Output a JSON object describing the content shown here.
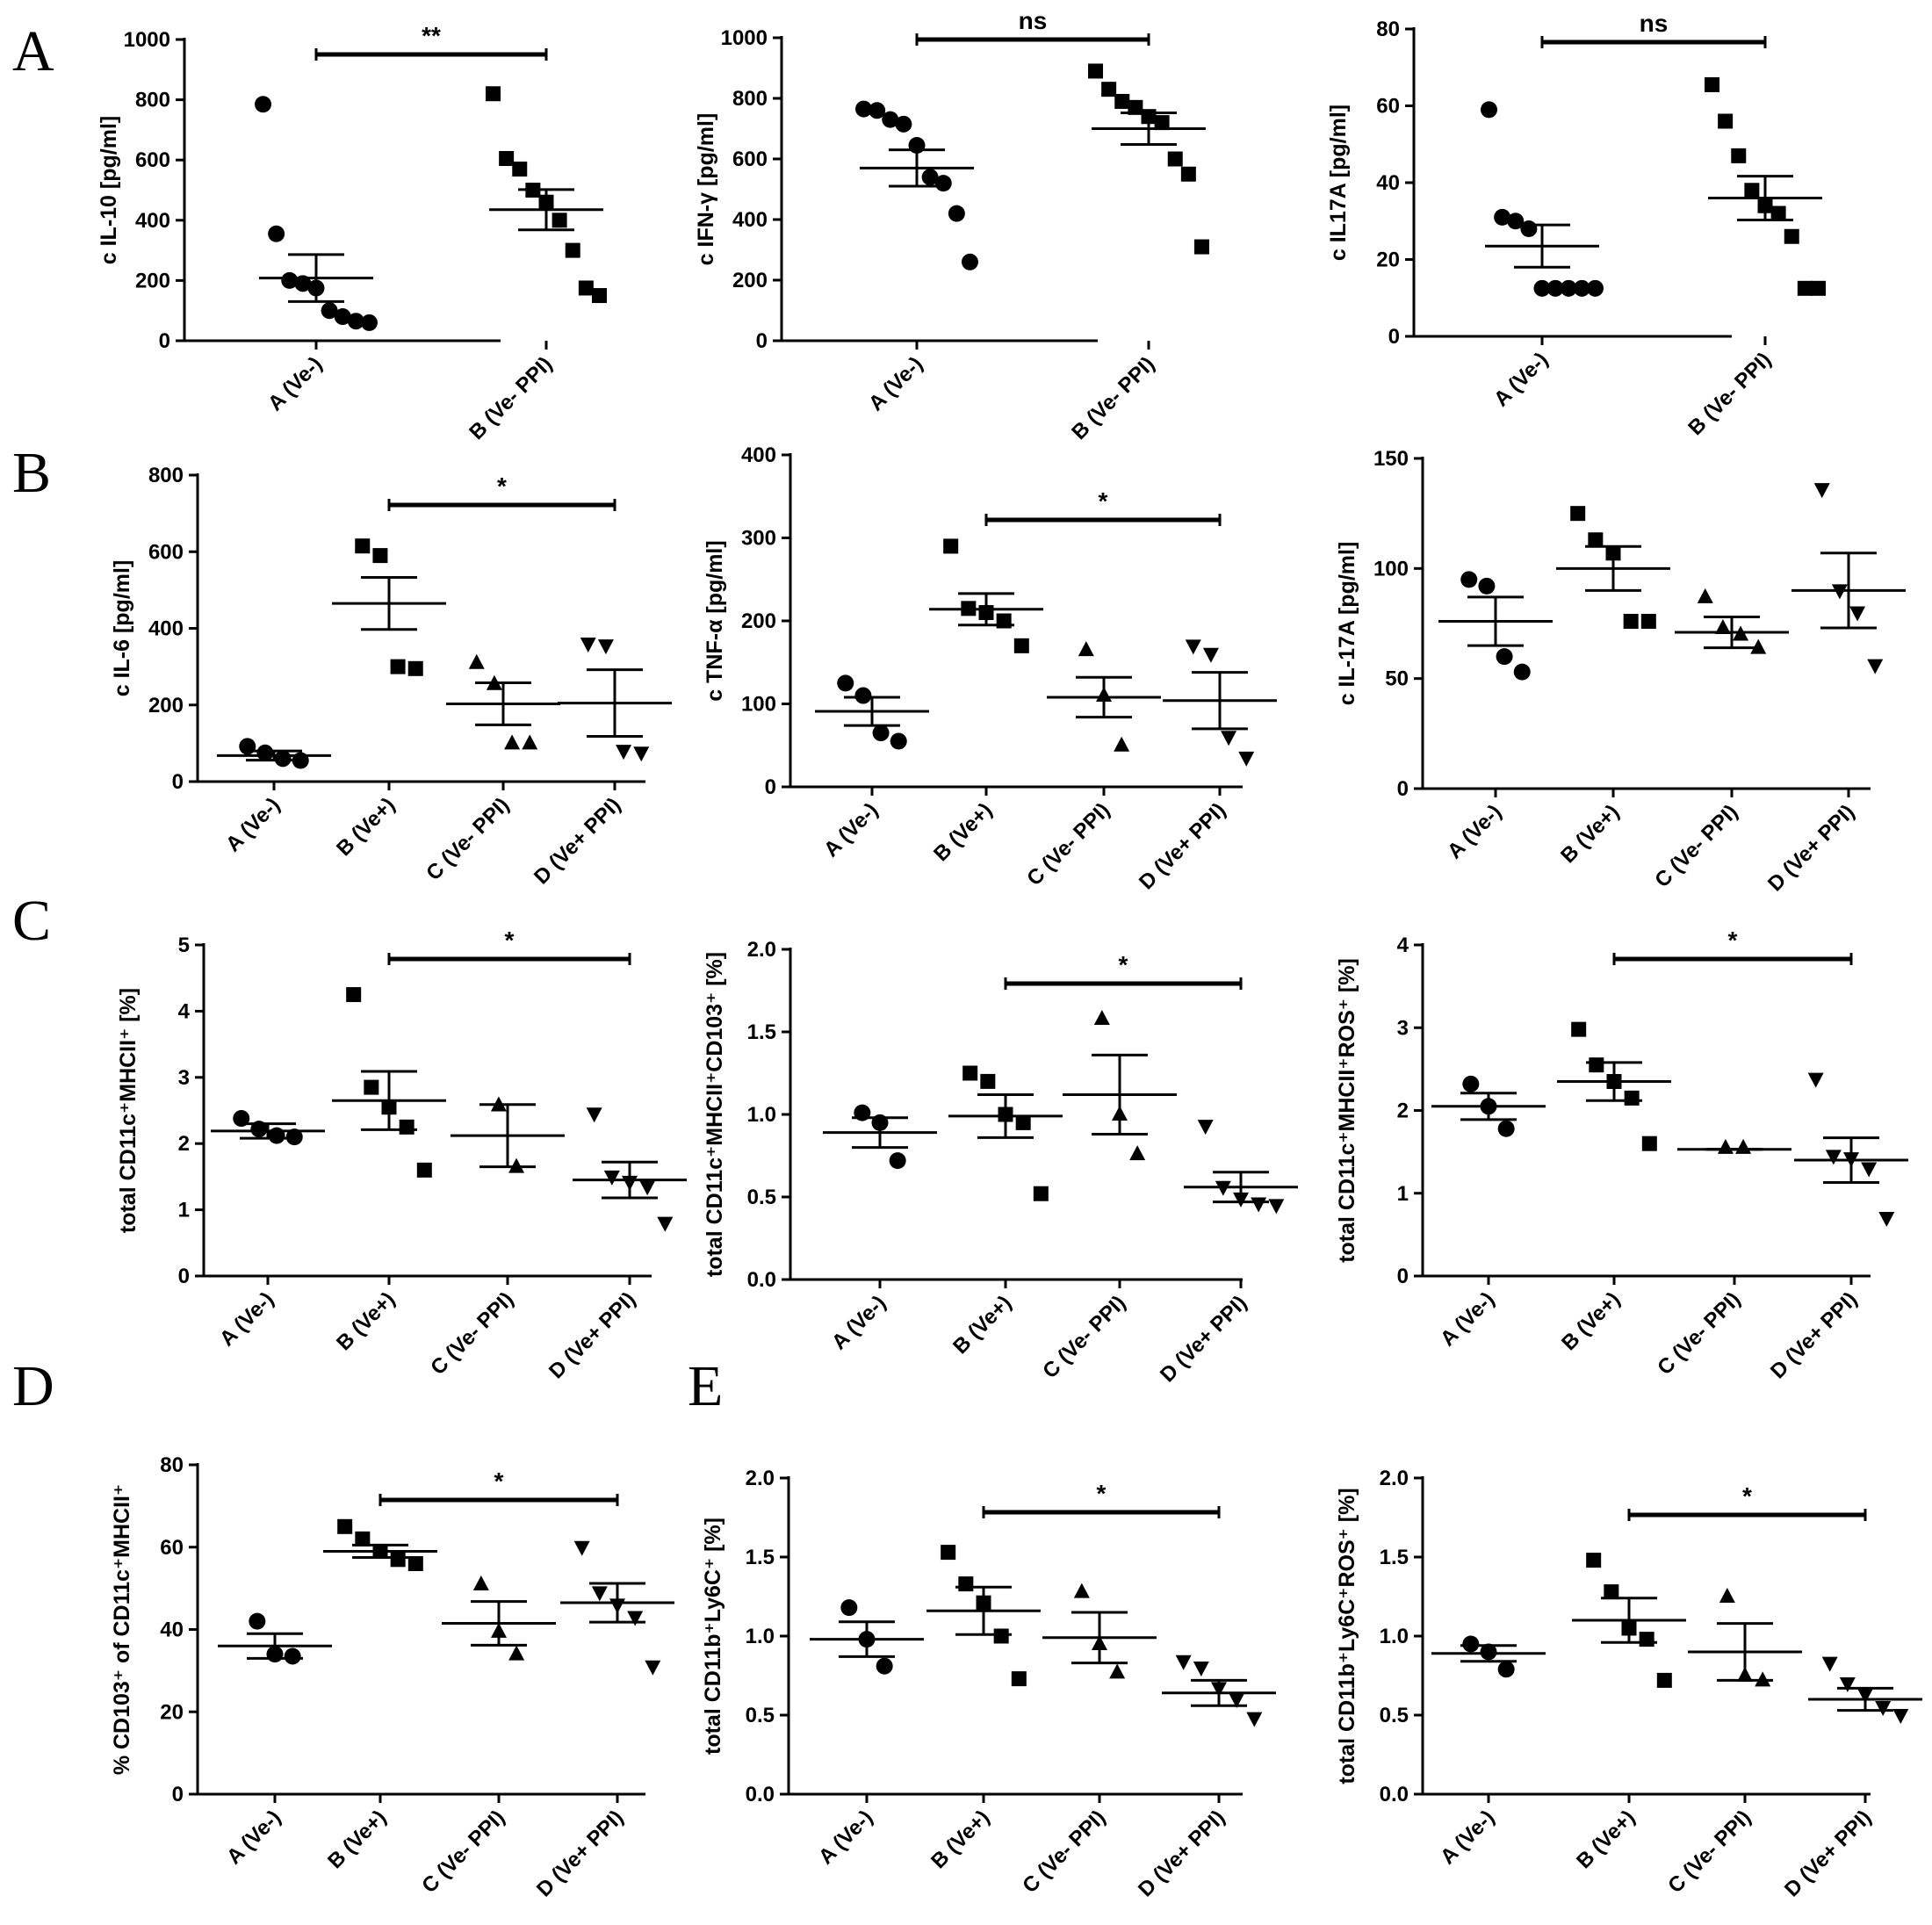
{
  "panel_letters": [
    "A",
    "B",
    "C",
    "D",
    "E"
  ],
  "chart_data": [
    {
      "type": "scatter",
      "panel": "A",
      "ylabel": "c IL-10 [pg/ml]",
      "ylim": [
        0,
        1000
      ],
      "yticks": [
        0,
        200,
        400,
        600,
        800,
        1000
      ],
      "grid": false,
      "categories": [
        "A (Ve-)",
        "B (Ve- PPI)"
      ],
      "series": [
        {
          "marker": "circle",
          "points": [
            785,
            355,
            200,
            190,
            175,
            100,
            80,
            65,
            60
          ],
          "mean": 208,
          "sem": 78
        },
        {
          "marker": "square",
          "points": [
            820,
            605,
            570,
            500,
            460,
            400,
            300,
            175,
            150
          ],
          "mean": 435,
          "sem": 67
        }
      ],
      "significance": [
        {
          "from": 0,
          "to": 1,
          "label": "**"
        }
      ]
    },
    {
      "type": "scatter",
      "panel": "A",
      "ylabel": "c IFN-γ [pg/ml]",
      "ylim": [
        0,
        1000
      ],
      "yticks": [
        0,
        200,
        400,
        600,
        800,
        1000
      ],
      "grid": false,
      "categories": [
        "A (Ve-)",
        "B (Ve- PPI)"
      ],
      "series": [
        {
          "marker": "circle",
          "points": [
            765,
            760,
            730,
            715,
            645,
            540,
            520,
            420,
            260
          ],
          "mean": 570,
          "sem": 60
        },
        {
          "marker": "square",
          "points": [
            890,
            830,
            790,
            770,
            740,
            720,
            600,
            550,
            310
          ],
          "mean": 700,
          "sem": 52
        }
      ],
      "significance": [
        {
          "from": 0,
          "to": 1,
          "label": "ns"
        }
      ]
    },
    {
      "type": "scatter",
      "panel": "A",
      "ylabel": "c IL17A [pg/ml]",
      "ylim": [
        0,
        80
      ],
      "yticks": [
        0,
        20,
        40,
        60,
        80
      ],
      "grid": false,
      "categories": [
        "A (Ve-)",
        "B (Ve- PPI)"
      ],
      "series": [
        {
          "marker": "circle",
          "points": [
            59,
            31,
            30,
            28,
            12.5,
            12.5,
            12.5,
            12.5,
            12.5
          ],
          "mean": 23.5,
          "sem": 5.5
        },
        {
          "marker": "square",
          "points": [
            65.5,
            56,
            47,
            38,
            34,
            32,
            26,
            12.5,
            12.5
          ],
          "mean": 36,
          "sem": 5.7
        }
      ],
      "significance": [
        {
          "from": 0,
          "to": 1,
          "label": "ns"
        }
      ]
    },
    {
      "type": "scatter",
      "panel": "B",
      "ylabel": "c IL-6 [pg/ml]",
      "ylim": [
        0,
        800
      ],
      "yticks": [
        0,
        200,
        400,
        600,
        800
      ],
      "grid": false,
      "categories": [
        "A (Ve-)",
        "B (Ve+)",
        "C (Ve- PPI)",
        "D (Ve+ PPI)"
      ],
      "series": [
        {
          "marker": "circle",
          "points": [
            92,
            75,
            60,
            55
          ],
          "mean": 68,
          "sem": 12
        },
        {
          "marker": "square",
          "points": [
            615,
            590,
            300,
            295
          ],
          "mean": 465,
          "sem": 68
        },
        {
          "marker": "triangle-up",
          "points": [
            310,
            255,
            100,
            100
          ],
          "mean": 203,
          "sem": 55
        },
        {
          "marker": "triangle-down",
          "points": [
            360,
            355,
            80,
            75
          ],
          "mean": 205,
          "sem": 87
        }
      ],
      "significance": [
        {
          "from": 1,
          "to": 3,
          "label": "*"
        }
      ]
    },
    {
      "type": "scatter",
      "panel": "B",
      "ylabel": "c TNF-α [pg/ml]",
      "ylim": [
        0,
        400
      ],
      "yticks": [
        0,
        100,
        200,
        300,
        400
      ],
      "grid": false,
      "categories": [
        "A (Ve-)",
        "B (Ve+)",
        "C (Ve- PPI)",
        "D (Ve+ PPI)"
      ],
      "series": [
        {
          "marker": "circle",
          "points": [
            125,
            110,
            65,
            55
          ],
          "mean": 91,
          "sem": 17
        },
        {
          "marker": "square",
          "points": [
            290,
            215,
            210,
            200,
            170
          ],
          "mean": 214,
          "sem": 19
        },
        {
          "marker": "triangle-up",
          "points": [
            165,
            110,
            50
          ],
          "mean": 108,
          "sem": 24
        },
        {
          "marker": "triangle-down",
          "points": [
            170,
            160,
            60,
            35
          ],
          "mean": 104,
          "sem": 34
        }
      ],
      "significance": [
        {
          "from": 1,
          "to": 3,
          "label": "*"
        }
      ]
    },
    {
      "type": "scatter",
      "panel": "B",
      "ylabel": "c IL-17A [pg/ml]",
      "ylim": [
        0,
        150
      ],
      "yticks": [
        0,
        50,
        100,
        150
      ],
      "grid": false,
      "categories": [
        "A (Ve-)",
        "B (Ve+)",
        "C (Ve- PPI)",
        "D (Ve+ PPI)"
      ],
      "series": [
        {
          "marker": "circle",
          "points": [
            95,
            92,
            60,
            53
          ],
          "mean": 76,
          "sem": 11
        },
        {
          "marker": "square",
          "points": [
            125,
            113,
            107,
            76,
            76
          ],
          "mean": 100,
          "sem": 10
        },
        {
          "marker": "triangle-up",
          "points": [
            87,
            73,
            70,
            64
          ],
          "mean": 71,
          "sem": 7
        },
        {
          "marker": "triangle-down",
          "points": [
            136,
            90,
            80,
            56
          ],
          "mean": 90,
          "sem": 17
        }
      ],
      "significance": []
    },
    {
      "type": "scatter",
      "panel": "C",
      "ylabel": "total CD11c⁺MHCII⁺ [%]",
      "ylim": [
        0,
        5
      ],
      "yticks": [
        0,
        1,
        2,
        3,
        4,
        5
      ],
      "grid": false,
      "categories": [
        "A (Ve-)",
        "B (Ve+)",
        "C (Ve- PPI)",
        "D (Ve+ PPI)"
      ],
      "series": [
        {
          "marker": "circle",
          "points": [
            2.38,
            2.22,
            2.12,
            2.1
          ],
          "mean": 2.19,
          "sem": 0.11
        },
        {
          "marker": "square",
          "points": [
            4.25,
            2.85,
            2.55,
            2.25,
            1.6
          ],
          "mean": 2.65,
          "sem": 0.44
        },
        {
          "marker": "triangle-up",
          "points": [
            2.58,
            1.65
          ],
          "mean": 2.12,
          "sem": 0.47
        },
        {
          "marker": "triangle-down",
          "points": [
            2.45,
            1.5,
            1.42,
            1.35,
            0.8
          ],
          "mean": 1.45,
          "sem": 0.27
        }
      ],
      "significance": [
        {
          "from": 1,
          "to": 3,
          "label": "*"
        }
      ]
    },
    {
      "type": "scatter",
      "panel": "C",
      "ylabel": "total CD11c⁺MHCII⁺CD103⁺ [%]",
      "ylim": [
        0,
        2
      ],
      "yticks": [
        "0.0",
        "0.5",
        "1.0",
        "1.5",
        "2.0"
      ],
      "grid": false,
      "categories": [
        "A (Ve-)",
        "B (Ve+)",
        "C (Ve- PPI)",
        "D (Ve+ PPI)"
      ],
      "series": [
        {
          "marker": "circle",
          "points": [
            1.01,
            0.95,
            0.72
          ],
          "mean": 0.89,
          "sem": 0.09
        },
        {
          "marker": "square",
          "points": [
            1.25,
            1.2,
            1.0,
            0.95,
            0.52
          ],
          "mean": 0.99,
          "sem": 0.13
        },
        {
          "marker": "triangle-up",
          "points": [
            1.58,
            1.0,
            0.76
          ],
          "mean": 1.12,
          "sem": 0.24
        },
        {
          "marker": "triangle-down",
          "points": [
            0.93,
            0.56,
            0.49,
            0.46,
            0.45
          ],
          "mean": 0.56,
          "sem": 0.09
        }
      ],
      "significance": [
        {
          "from": 1,
          "to": 3,
          "label": "*"
        }
      ]
    },
    {
      "type": "scatter",
      "panel": "C",
      "ylabel": "total CD11c⁺MHCII⁺ROS⁺ [%]",
      "ylim": [
        0,
        4
      ],
      "yticks": [
        0,
        1,
        2,
        3,
        4
      ],
      "grid": false,
      "categories": [
        "A (Ve-)",
        "B (Ve+)",
        "C (Ve- PPI)",
        "D (Ve+ PPI)"
      ],
      "series": [
        {
          "marker": "circle",
          "points": [
            2.32,
            2.05,
            1.78
          ],
          "mean": 2.05,
          "sem": 0.16
        },
        {
          "marker": "square",
          "points": [
            2.98,
            2.55,
            2.35,
            2.15,
            1.6
          ],
          "mean": 2.35,
          "sem": 0.23
        },
        {
          "marker": "triangle-up",
          "points": [
            1.55,
            1.55
          ],
          "mean": 1.53,
          "sem": 0.0
        },
        {
          "marker": "triangle-down",
          "points": [
            2.38,
            1.45,
            1.42,
            1.3,
            0.7
          ],
          "mean": 1.4,
          "sem": 0.27
        }
      ],
      "significance": [
        {
          "from": 1,
          "to": 3,
          "label": "*"
        }
      ]
    },
    {
      "type": "scatter",
      "panel": "D",
      "ylabel": "% CD103⁺ of CD11c⁺MHCII⁺",
      "ylim": [
        0,
        80
      ],
      "yticks": [
        0,
        20,
        40,
        60,
        80
      ],
      "grid": false,
      "categories": [
        "A (Ve-)",
        "B (Ve+)",
        "C (Ve- PPI)",
        "D (Ve+ PPI)"
      ],
      "series": [
        {
          "marker": "circle",
          "points": [
            42,
            34,
            33.5
          ],
          "mean": 36,
          "sem": 3
        },
        {
          "marker": "square",
          "points": [
            65,
            62,
            59,
            57,
            56
          ],
          "mean": 59,
          "sem": 1.5
        },
        {
          "marker": "triangle-up",
          "points": [
            51,
            39.5,
            34
          ],
          "mean": 41.5,
          "sem": 5.3
        },
        {
          "marker": "triangle-down",
          "points": [
            60,
            49,
            46,
            43,
            31
          ],
          "mean": 46.5,
          "sem": 4.7
        }
      ],
      "significance": [
        {
          "from": 1,
          "to": 3,
          "label": "*"
        }
      ]
    },
    {
      "type": "scatter",
      "panel": "E",
      "ylabel": "total CD11b⁺Ly6C⁺ [%]",
      "ylim": [
        0,
        2
      ],
      "yticks": [
        "0.0",
        "0.5",
        "1.0",
        "1.5",
        "2.0"
      ],
      "grid": false,
      "categories": [
        "A (Ve-)",
        "B (Ve+)",
        "C (Ve- PPI)",
        "D (Ve+ PPI)"
      ],
      "series": [
        {
          "marker": "circle",
          "points": [
            1.18,
            0.98,
            0.81
          ],
          "mean": 0.98,
          "sem": 0.11
        },
        {
          "marker": "square",
          "points": [
            1.53,
            1.33,
            1.21,
            1.0,
            0.73
          ],
          "mean": 1.16,
          "sem": 0.15
        },
        {
          "marker": "triangle-up",
          "points": [
            1.28,
            0.95,
            0.77
          ],
          "mean": 0.99,
          "sem": 0.16
        },
        {
          "marker": "triangle-down",
          "points": [
            0.84,
            0.8,
            0.67,
            0.6,
            0.48
          ],
          "mean": 0.64,
          "sem": 0.08
        }
      ],
      "significance": [
        {
          "from": 1,
          "to": 3,
          "label": "*"
        }
      ]
    },
    {
      "type": "scatter",
      "panel": "E",
      "ylabel": "total CD11b⁺Ly6C⁺ROS⁺ [%]",
      "ylim": [
        0,
        2
      ],
      "yticks": [
        "0.0",
        "0.5",
        "1.0",
        "1.5",
        "2.0"
      ],
      "grid": false,
      "categories": [
        "A (Ve-)",
        "B (Ve+)",
        "C (Ve- PPI)",
        "D (Ve+ PPI)"
      ],
      "series": [
        {
          "marker": "circle",
          "points": [
            0.95,
            0.9,
            0.79
          ],
          "mean": 0.89,
          "sem": 0.05
        },
        {
          "marker": "square",
          "points": [
            1.48,
            1.28,
            1.05,
            0.98,
            0.72
          ],
          "mean": 1.1,
          "sem": 0.14
        },
        {
          "marker": "triangle-up",
          "points": [
            1.25,
            0.75,
            0.72
          ],
          "mean": 0.9,
          "sem": 0.18
        },
        {
          "marker": "triangle-down",
          "points": [
            0.83,
            0.7,
            0.63,
            0.55,
            0.5
          ],
          "mean": 0.6,
          "sem": 0.07
        }
      ],
      "significance": [
        {
          "from": 1,
          "to": 3,
          "label": "*"
        }
      ]
    }
  ]
}
